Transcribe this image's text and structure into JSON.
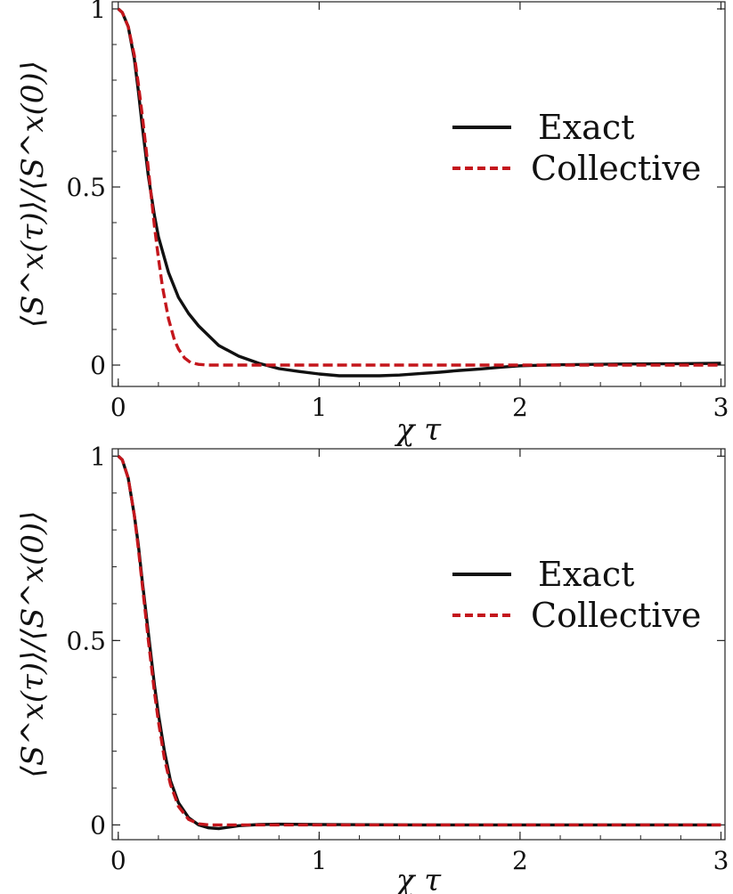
{
  "chart_data": [
    {
      "type": "line",
      "panel": "top",
      "xlabel": "χ τ",
      "ylabel": "⟨S^x(τ)⟩/⟨S^x(0)⟩",
      "xlim": [
        -0.03,
        3.02
      ],
      "ylim": [
        -0.06,
        1.02
      ],
      "xticks": [
        0,
        1,
        2,
        3
      ],
      "yticks": [
        0,
        0.5,
        1
      ],
      "xtick_labels": [
        "0",
        "1",
        "2",
        "3"
      ],
      "ytick_labels": [
        "0",
        "0.5",
        "1"
      ],
      "grid": false,
      "legend_placement": "right",
      "series": [
        {
          "name": "Exact",
          "color": "#111111",
          "dash": "solid",
          "x": [
            0,
            0.02,
            0.05,
            0.08,
            0.1,
            0.12,
            0.15,
            0.18,
            0.2,
            0.25,
            0.3,
            0.35,
            0.4,
            0.5,
            0.6,
            0.7,
            0.8,
            0.9,
            1.0,
            1.1,
            1.2,
            1.3,
            1.4,
            1.5,
            1.6,
            1.7,
            1.8,
            1.9,
            2.0,
            2.2,
            2.5,
            2.8,
            3.0
          ],
          "y": [
            1.0,
            0.99,
            0.95,
            0.86,
            0.77,
            0.67,
            0.53,
            0.42,
            0.36,
            0.26,
            0.19,
            0.145,
            0.11,
            0.055,
            0.025,
            0.005,
            -0.01,
            -0.018,
            -0.025,
            -0.03,
            -0.03,
            -0.03,
            -0.028,
            -0.024,
            -0.02,
            -0.015,
            -0.011,
            -0.006,
            -0.002,
            0.001,
            0.003,
            0.004,
            0.005
          ]
        },
        {
          "name": "Collective",
          "color": "#c4161c",
          "dash": "dashed",
          "x": [
            0,
            0.02,
            0.05,
            0.08,
            0.1,
            0.12,
            0.15,
            0.18,
            0.2,
            0.22,
            0.25,
            0.28,
            0.3,
            0.33,
            0.36,
            0.4,
            0.45,
            0.5,
            0.7,
            1.0,
            2.0,
            3.0
          ],
          "y": [
            1.0,
            0.99,
            0.95,
            0.87,
            0.79,
            0.7,
            0.55,
            0.39,
            0.3,
            0.22,
            0.13,
            0.07,
            0.045,
            0.02,
            0.007,
            0.002,
            0.0,
            0.0,
            0.0,
            0.0,
            0.0,
            0.0
          ]
        }
      ]
    },
    {
      "type": "line",
      "panel": "bottom",
      "xlabel": "χ τ",
      "ylabel": "⟨S^x(τ)⟩/⟨S^x(0)⟩",
      "xlim": [
        -0.03,
        3.02
      ],
      "ylim": [
        -0.04,
        1.02
      ],
      "xticks": [
        0,
        1,
        2,
        3
      ],
      "yticks": [
        0,
        0.5,
        1
      ],
      "xtick_labels": [
        "0",
        "1",
        "2",
        "3"
      ],
      "ytick_labels": [
        "0",
        "0.5",
        "1"
      ],
      "grid": false,
      "legend_placement": "right",
      "series": [
        {
          "name": "Exact",
          "color": "#111111",
          "dash": "solid",
          "x": [
            0,
            0.02,
            0.05,
            0.08,
            0.1,
            0.12,
            0.15,
            0.18,
            0.2,
            0.23,
            0.26,
            0.3,
            0.35,
            0.4,
            0.45,
            0.5,
            0.55,
            0.6,
            0.7,
            0.8,
            1.0,
            1.5,
            2.0,
            3.0
          ],
          "y": [
            1.0,
            0.99,
            0.94,
            0.84,
            0.76,
            0.66,
            0.52,
            0.38,
            0.3,
            0.2,
            0.12,
            0.06,
            0.02,
            0.0,
            -0.008,
            -0.01,
            -0.006,
            -0.002,
            0.001,
            0.002,
            0.001,
            0.0,
            0.0,
            0.0
          ]
        },
        {
          "name": "Collective",
          "color": "#c4161c",
          "dash": "dashed",
          "x": [
            0,
            0.02,
            0.05,
            0.08,
            0.1,
            0.12,
            0.15,
            0.18,
            0.2,
            0.23,
            0.26,
            0.3,
            0.35,
            0.4,
            0.45,
            0.5,
            0.7,
            1.0,
            2.0,
            3.0
          ],
          "y": [
            1.0,
            0.99,
            0.94,
            0.84,
            0.75,
            0.65,
            0.5,
            0.36,
            0.28,
            0.18,
            0.11,
            0.05,
            0.015,
            0.003,
            0.0,
            0.0,
            0.0,
            0.0,
            0.0,
            0.0
          ]
        }
      ]
    }
  ]
}
